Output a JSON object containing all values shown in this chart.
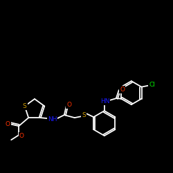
{
  "bg_color": "#000000",
  "bond_color": "#ffffff",
  "atom_colors": {
    "S": "#d4a000",
    "O": "#ff3300",
    "N": "#1a1aff",
    "Cl": "#00ee00",
    "C": "#ffffff"
  },
  "figsize": [
    2.5,
    2.5
  ],
  "dpi": 100
}
